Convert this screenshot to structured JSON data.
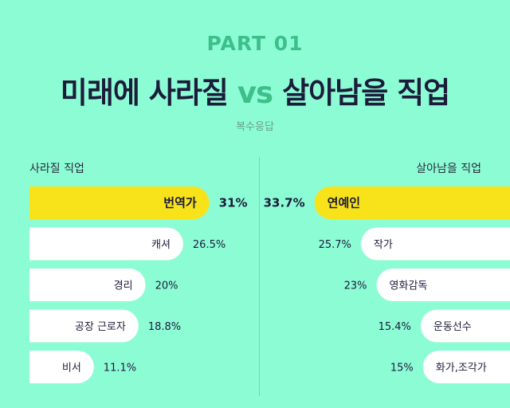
{
  "header": {
    "part": "PART 01",
    "title_left": "미래에 사라질",
    "title_vs": "vs",
    "title_right": "살아남을 직업",
    "subtitle": "복수응답"
  },
  "colors": {
    "background": "#8CFCD5",
    "highlight": "#F8E21A",
    "bar": "#FFFFFF",
    "accent": "#3DBF8A",
    "text": "#1C1C3A"
  },
  "chart_data": [
    {
      "type": "bar",
      "title": "사라질 직업",
      "orientation": "horizontal",
      "categories": [
        "번역가",
        "캐셔",
        "경리",
        "공장 근로자",
        "비서"
      ],
      "values": [
        31,
        26.5,
        20,
        18.8,
        11.1
      ],
      "value_labels": [
        "31%",
        "26.5%",
        "20%",
        "18.8%",
        "11.1%"
      ],
      "highlight_index": 0,
      "direction": "left-to-right"
    },
    {
      "type": "bar",
      "title": "살아남을 직업",
      "orientation": "horizontal",
      "categories": [
        "연예인",
        "작가",
        "영화감독",
        "운동선수",
        "화가,조각가"
      ],
      "values": [
        33.7,
        25.7,
        23,
        15.4,
        15
      ],
      "value_labels": [
        "33.7%",
        "25.7%",
        "23%",
        "15.4%",
        "15%"
      ],
      "highlight_index": 0,
      "direction": "right-to-left"
    }
  ]
}
